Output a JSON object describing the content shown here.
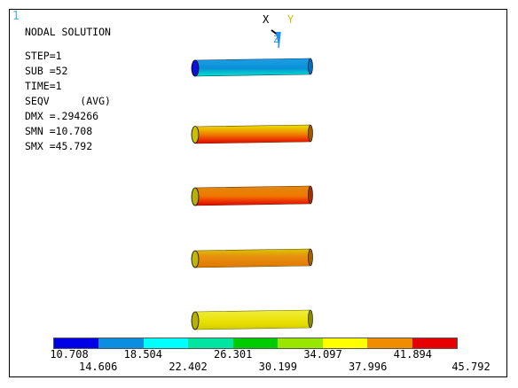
{
  "window_number": "1",
  "info_lines": {
    "title": "NODAL SOLUTION",
    "step": "STEP=1",
    "sub": "SUB =52",
    "time": "TIME=1",
    "seqv": "SEQV     (AVG)",
    "dmx": "DMX =.294266",
    "smn": "SMN =10.708",
    "smx": "SMX =45.792"
  },
  "triad": {
    "x": "X",
    "y": "Y",
    "z": "Z"
  },
  "legend": {
    "colors": [
      "#0000e6",
      "#0a8fe0",
      "#00ffff",
      "#00e6a0",
      "#00cc00",
      "#99e600",
      "#ffff00",
      "#f08c00",
      "#e60000"
    ],
    "top_row": [
      "10.708",
      "18.504",
      "26.301",
      "34.097",
      "41.894"
    ],
    "bottom_row": [
      "14.606",
      "22.402",
      "30.199",
      "37.996",
      "45.792"
    ]
  }
}
